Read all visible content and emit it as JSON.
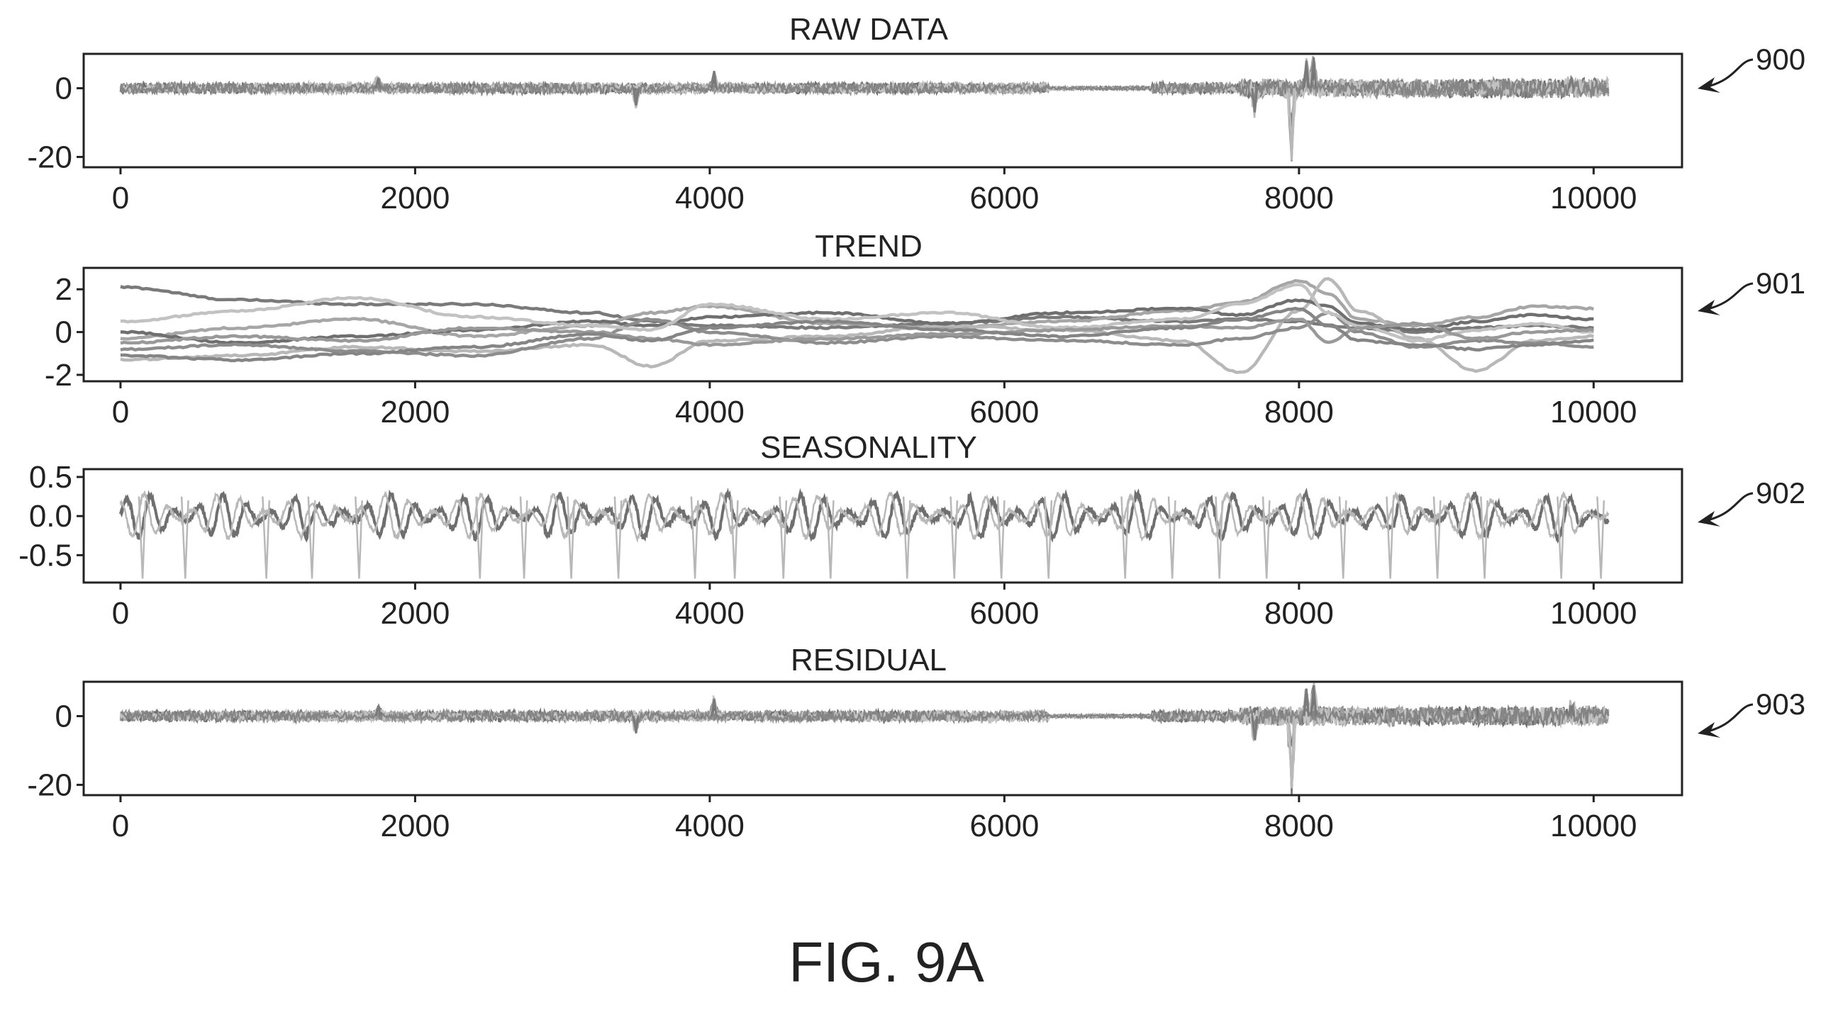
{
  "figure": {
    "caption": "FIG. 9A"
  },
  "chart_data": [
    {
      "type": "line",
      "title": "RAW DATA",
      "reference_numeral": "900",
      "xlabel": "",
      "ylabel": "",
      "xlim": [
        -250,
        10600
      ],
      "ylim": [
        -23,
        10
      ],
      "x_ticks": [
        0,
        2000,
        4000,
        6000,
        8000,
        10000
      ],
      "y_ticks": [
        0,
        -20
      ],
      "x_tick_labels": [
        "0",
        "2000",
        "4000",
        "6000",
        "8000",
        "10000"
      ],
      "y_tick_labels": [
        "0",
        "-20"
      ],
      "grid": false,
      "series_count": 8,
      "series_colors": [
        "#7a7a7a",
        "#8d8d8d",
        "#a6a6a6",
        "#b8b8b8",
        "#6f6f6f",
        "#999999",
        "#c2c2c2",
        "#858585"
      ],
      "events": [
        {
          "x": 1750,
          "y": 3
        },
        {
          "x": 3500,
          "y": -5
        },
        {
          "x": 4030,
          "y": 5
        },
        {
          "x": 7700,
          "y": -7
        },
        {
          "x": 7950,
          "y": -21
        },
        {
          "x": 8050,
          "y": 8
        },
        {
          "x": 8100,
          "y": 9
        },
        {
          "x": 9850,
          "y": 3
        }
      ]
    },
    {
      "type": "line",
      "title": "TREND",
      "reference_numeral": "901",
      "xlabel": "",
      "ylabel": "",
      "xlim": [
        -250,
        10600
      ],
      "ylim": [
        -2.3,
        3
      ],
      "x_ticks": [
        0,
        2000,
        4000,
        6000,
        8000,
        10000
      ],
      "y_ticks": [
        2,
        0,
        -2
      ],
      "x_tick_labels": [
        "0",
        "2000",
        "4000",
        "6000",
        "8000",
        "10000"
      ],
      "y_tick_labels": [
        "2",
        "0",
        "-2"
      ],
      "grid": false,
      "x": [
        0,
        800,
        1600,
        2400,
        3200,
        3600,
        4000,
        4800,
        5600,
        6400,
        7200,
        7600,
        8000,
        8200,
        8400,
        8800,
        9200,
        9600,
        10000
      ],
      "series": [
        {
          "values": [
            2.1,
            1.5,
            1.3,
            1.3,
            0.9,
            0.5,
            0.3,
            0.2,
            0.4,
            0.7,
            0.5,
            0.6,
            0.5,
            0.3,
            0.2,
            0.0,
            0.2,
            0.3,
            0.2
          ]
        },
        {
          "values": [
            -0.3,
            0.2,
            0.6,
            -0.2,
            0.3,
            0.9,
            1.2,
            0.4,
            0.2,
            0.5,
            1.0,
            1.4,
            2.4,
            1.8,
            0.6,
            0.3,
            0.7,
            1.2,
            1.1
          ]
        },
        {
          "values": [
            -1.3,
            -1.1,
            -0.7,
            -0.9,
            -0.6,
            -1.6,
            -0.4,
            -0.2,
            0.3,
            0.1,
            -0.4,
            -1.9,
            1.0,
            2.5,
            1.0,
            -0.3,
            -1.8,
            -0.4,
            -0.2
          ]
        },
        {
          "values": [
            0.0,
            -0.5,
            -0.2,
            0.1,
            0.5,
            0.3,
            0.7,
            0.9,
            0.4,
            0.9,
            1.1,
            0.8,
            1.5,
            1.2,
            0.4,
            0.1,
            0.5,
            0.8,
            0.6
          ]
        },
        {
          "values": [
            -0.8,
            -0.6,
            -0.9,
            -1.1,
            -0.3,
            0.6,
            0.0,
            -0.5,
            -0.2,
            -0.4,
            -0.6,
            -0.3,
            0.2,
            0.9,
            0.0,
            -0.7,
            -0.4,
            -0.5,
            -0.7
          ]
        },
        {
          "values": [
            0.5,
            1.0,
            1.6,
            0.7,
            0.3,
            0.1,
            1.3,
            0.6,
            0.9,
            0.2,
            0.6,
            1.3,
            2.2,
            0.9,
            0.3,
            -0.4,
            0.1,
            0.4,
            0.0
          ]
        },
        {
          "values": [
            -0.5,
            -0.2,
            -0.4,
            0.2,
            0.0,
            -0.3,
            -0.6,
            -0.3,
            -0.1,
            0.1,
            0.3,
            0.2,
            0.6,
            -0.5,
            0.2,
            0.4,
            -0.3,
            0.0,
            0.1
          ]
        },
        {
          "values": [
            -1.1,
            -1.3,
            -1.0,
            -0.7,
            -0.1,
            -0.4,
            0.2,
            0.5,
            0.1,
            -0.2,
            0.2,
            0.6,
            1.1,
            0.3,
            -0.4,
            -0.6,
            -0.8,
            -0.6,
            -0.4
          ]
        }
      ],
      "series_colors": [
        "#7a7a7a",
        "#a6a6a6",
        "#b8b8b8",
        "#6f6f6f",
        "#8d8d8d",
        "#c2c2c2",
        "#999999",
        "#858585"
      ]
    },
    {
      "type": "line",
      "title": "SEASONALITY",
      "reference_numeral": "902",
      "xlabel": "",
      "ylabel": "",
      "xlim": [
        -250,
        10600
      ],
      "ylim": [
        -0.85,
        0.6
      ],
      "x_ticks": [
        0,
        2000,
        4000,
        6000,
        8000,
        10000
      ],
      "y_ticks": [
        0.5,
        0.0,
        -0.5
      ],
      "x_tick_labels": [
        "0",
        "2000",
        "4000",
        "6000",
        "8000",
        "10000"
      ],
      "y_tick_labels": [
        "0.5",
        "0.0",
        "-0.5"
      ],
      "grid": false,
      "period": 1440,
      "dip_x": [
        150,
        440,
        990,
        1300,
        1620,
        2440,
        2740,
        3060,
        3380,
        3900,
        4170,
        4500,
        4820,
        5340,
        5660,
        5980,
        6300,
        6820,
        7140,
        7460,
        7780,
        8300,
        8620,
        8940,
        9260,
        9780,
        10050
      ],
      "dip_value": -0.8,
      "series_colors": [
        "#6f6f6f",
        "#b8b8b8"
      ]
    },
    {
      "type": "line",
      "title": "RESIDUAL",
      "reference_numeral": "903",
      "xlabel": "",
      "ylabel": "",
      "xlim": [
        -250,
        10600
      ],
      "ylim": [
        -23,
        10
      ],
      "x_ticks": [
        0,
        2000,
        4000,
        6000,
        8000,
        10000
      ],
      "y_ticks": [
        0,
        -20
      ],
      "x_tick_labels": [
        "0",
        "2000",
        "4000",
        "6000",
        "8000",
        "10000"
      ],
      "y_tick_labels": [
        "0",
        "-20"
      ],
      "grid": false,
      "series_count": 8,
      "series_colors": [
        "#7a7a7a",
        "#8d8d8d",
        "#a6a6a6",
        "#b8b8b8",
        "#6f6f6f",
        "#999999",
        "#c2c2c2",
        "#858585"
      ],
      "events": [
        {
          "x": 1750,
          "y": 3
        },
        {
          "x": 3500,
          "y": -5
        },
        {
          "x": 4030,
          "y": 5
        },
        {
          "x": 7700,
          "y": -7
        },
        {
          "x": 7950,
          "y": -21
        },
        {
          "x": 8050,
          "y": 8
        },
        {
          "x": 8100,
          "y": 9
        },
        {
          "x": 9850,
          "y": 3
        }
      ]
    }
  ]
}
